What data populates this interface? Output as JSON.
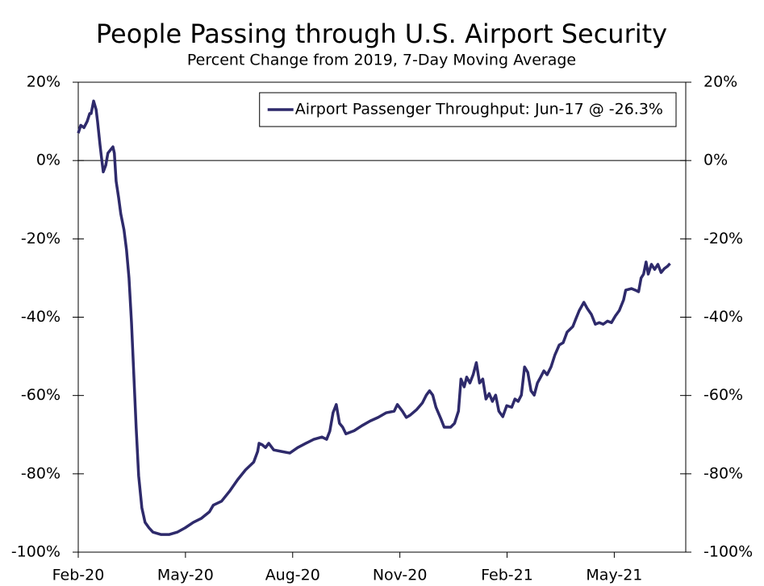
{
  "chart_data": {
    "type": "line",
    "title": "People Passing through U.S. Airport Security",
    "subtitle": "Percent Change from 2019, 7-Day Moving Average",
    "x": [
      0,
      0.07,
      0.16,
      0.25,
      0.32,
      0.36,
      0.43,
      0.5,
      0.54,
      0.61,
      0.65,
      0.7,
      0.77,
      0.83,
      0.9,
      0.97,
      1.01,
      1.06,
      1.13,
      1.19,
      1.28,
      1.35,
      1.42,
      1.49,
      1.55,
      1.62,
      1.69,
      1.78,
      1.87,
      1.98,
      2.09,
      2.32,
      2.54,
      2.77,
      2.99,
      3.22,
      3.44,
      3.67,
      3.78,
      4.01,
      4.23,
      4.46,
      4.68,
      4.91,
      5.02,
      5.06,
      5.15,
      5.24,
      5.33,
      5.47,
      5.69,
      5.92,
      6.14,
      6.37,
      6.59,
      6.82,
      6.95,
      7.04,
      7.13,
      7.22,
      7.31,
      7.4,
      7.49,
      7.72,
      7.94,
      8.17,
      8.39,
      8.62,
      8.84,
      8.93,
      9.07,
      9.18,
      9.29,
      9.47,
      9.63,
      9.74,
      9.83,
      9.92,
      10.01,
      10.15,
      10.24,
      10.42,
      10.53,
      10.64,
      10.71,
      10.8,
      10.87,
      10.96,
      11.05,
      11.14,
      11.23,
      11.32,
      11.41,
      11.5,
      11.59,
      11.68,
      11.77,
      11.88,
      11.99,
      12.13,
      12.22,
      12.31,
      12.4,
      12.49,
      12.58,
      12.67,
      12.76,
      12.85,
      12.94,
      13.03,
      13.12,
      13.23,
      13.34,
      13.46,
      13.57,
      13.68,
      13.84,
      13.93,
      14.02,
      14.15,
      14.24,
      14.36,
      14.47,
      14.58,
      14.69,
      14.81,
      14.92,
      15.03,
      15.14,
      15.26,
      15.32,
      15.48,
      15.59,
      15.68,
      15.75,
      15.82,
      15.89,
      15.95,
      16.04,
      16.13,
      16.22,
      16.31,
      16.4,
      16.49,
      16.56
    ],
    "series": [
      {
        "name": "Airport Passenger Throughput: Jun-17 @ -26.3%",
        "color": "#2e2a6b",
        "values": [
          7,
          9,
          8.4,
          10,
          12,
          12,
          15.2,
          13,
          10,
          3.9,
          0.8,
          -2.9,
          -1.2,
          1.9,
          2.7,
          3.5,
          1.9,
          -5.3,
          -9.5,
          -13.6,
          -17.7,
          -22.8,
          -30,
          -41.4,
          -53.7,
          -68.1,
          -80.5,
          -88.7,
          -92.4,
          -93.8,
          -94.9,
          -95.5,
          -95.5,
          -94.9,
          -93.8,
          -92.4,
          -91.4,
          -89.7,
          -88,
          -87,
          -84.5,
          -81.5,
          -79,
          -77,
          -74.3,
          -72.2,
          -72.6,
          -73.3,
          -72.2,
          -73.9,
          -74.3,
          -74.7,
          -73.3,
          -72.2,
          -71.2,
          -70.6,
          -71.2,
          -69.1,
          -64.4,
          -62.3,
          -67.1,
          -68.1,
          -69.8,
          -69,
          -67.7,
          -66.5,
          -65.6,
          -64.4,
          -64,
          -62.3,
          -64,
          -65.6,
          -65,
          -63.6,
          -61.9,
          -59.9,
          -58.8,
          -59.9,
          -63,
          -66,
          -68.1,
          -68.1,
          -67.1,
          -64,
          -55.8,
          -57.8,
          -55.3,
          -56.8,
          -54.7,
          -51.6,
          -56.8,
          -55.8,
          -60.9,
          -59.5,
          -61.5,
          -59.9,
          -64,
          -65.4,
          -62.6,
          -63,
          -60.9,
          -61.5,
          -59.9,
          -52.7,
          -54.1,
          -58.8,
          -59.9,
          -56.8,
          -55.3,
          -53.7,
          -54.7,
          -52.7,
          -49.6,
          -47.1,
          -46.5,
          -43.8,
          -42.4,
          -40.3,
          -38.3,
          -36.2,
          -37.7,
          -39.3,
          -41.8,
          -41.4,
          -41.8,
          -41,
          -41.4,
          -39.7,
          -38.3,
          -35.6,
          -33.1,
          -32.7,
          -33.1,
          -33.5,
          -30,
          -29,
          -25.9,
          -29,
          -26.5,
          -27.8,
          -26.5,
          -28.6,
          -27.6,
          -27,
          -26.3
        ]
      }
    ],
    "xlim": [
      0,
      17
    ],
    "xticks": [
      {
        "value": 0,
        "label": "Feb-20"
      },
      {
        "value": 3,
        "label": "May-20"
      },
      {
        "value": 6,
        "label": "Aug-20"
      },
      {
        "value": 9,
        "label": "Nov-20"
      },
      {
        "value": 12,
        "label": "Feb-21"
      },
      {
        "value": 15,
        "label": "May-21"
      }
    ],
    "ylim": [
      -100,
      20
    ],
    "yticks": [
      {
        "value": -100,
        "label": "-100%"
      },
      {
        "value": -80,
        "label": "-80%"
      },
      {
        "value": -60,
        "label": "-60%"
      },
      {
        "value": -40,
        "label": "-40%"
      },
      {
        "value": -20,
        "label": "-20%"
      },
      {
        "value": 0,
        "label": "0%"
      },
      {
        "value": 20,
        "label": "20%"
      }
    ],
    "y2lim": [
      -100,
      20
    ],
    "y2ticks": [
      {
        "value": -100,
        "label": "-100%"
      },
      {
        "value": -80,
        "label": "-80%"
      },
      {
        "value": -60,
        "label": "-60%"
      },
      {
        "value": -40,
        "label": "-40%"
      },
      {
        "value": -20,
        "label": "-20%"
      },
      {
        "value": 0,
        "label": "0%"
      },
      {
        "value": 20,
        "label": "20%"
      }
    ],
    "legend": "top-right"
  }
}
